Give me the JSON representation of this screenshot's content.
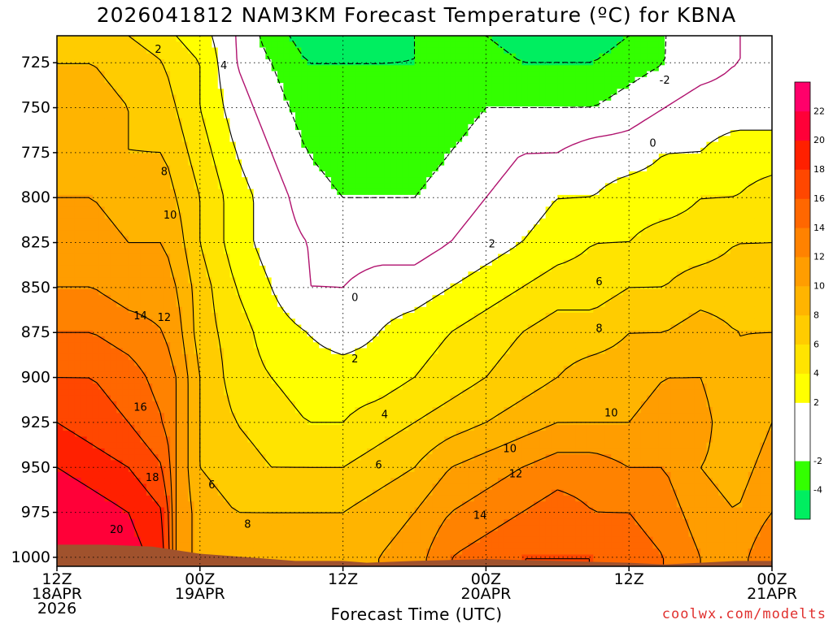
{
  "chart_data": {
    "type": "heatmap",
    "title": "2026041812 NAM3KM Forecast Temperature (ºC) for KBNA",
    "xlabel": "Forecast Time (UTC)",
    "credit": "coolwx.com/modelts",
    "y_axis": {
      "unit": "hPa",
      "reversed": true,
      "range": [
        710,
        1005
      ],
      "ticks": [
        725,
        750,
        775,
        800,
        825,
        850,
        875,
        900,
        925,
        950,
        975,
        1000
      ]
    },
    "x_axis": {
      "range_hours": [
        0,
        60
      ],
      "ticks": [
        {
          "hour": 0,
          "lines": [
            "12Z",
            "18APR",
            "2026"
          ]
        },
        {
          "hour": 12,
          "lines": [
            "00Z",
            "19APR"
          ]
        },
        {
          "hour": 24,
          "lines": [
            "12Z"
          ]
        },
        {
          "hour": 36,
          "lines": [
            "00Z",
            "20APR"
          ]
        },
        {
          "hour": 48,
          "lines": [
            "12Z"
          ]
        },
        {
          "hour": 60,
          "lines": [
            "00Z",
            "21APR"
          ]
        }
      ]
    },
    "grid": true,
    "colorbar": {
      "position": "right",
      "levels": [
        -6,
        -4,
        -2,
        0,
        2,
        4,
        6,
        8,
        10,
        12,
        14,
        16,
        18,
        20,
        22,
        24
      ],
      "tick_labels": [
        "-4",
        "-2",
        "2",
        "4",
        "6",
        "8",
        "10",
        "12",
        "14",
        "16",
        "18",
        "20",
        "22"
      ],
      "colors": [
        "#00ee60",
        "#33ff00",
        "#ffffff",
        "#ffffff",
        "#ffff00",
        "#ffe400",
        "#ffcc00",
        "#ffb400",
        "#ff9d00",
        "#ff8200",
        "#ff6700",
        "#ff4700",
        "#ff2000",
        "#ff0038",
        "#ff006a"
      ]
    },
    "ground_color": "#a0522d",
    "surface_pressure": [
      [
        0,
        993
      ],
      [
        4,
        993
      ],
      [
        8,
        994
      ],
      [
        12,
        998
      ],
      [
        16,
        1000
      ],
      [
        20,
        1002
      ],
      [
        24,
        1002
      ],
      [
        26,
        1003
      ],
      [
        30,
        1002
      ],
      [
        36,
        1001
      ],
      [
        42,
        1002
      ],
      [
        48,
        1003
      ],
      [
        51,
        1004
      ],
      [
        54,
        1003
      ],
      [
        57,
        1002
      ],
      [
        60,
        1002
      ]
    ],
    "temperature_grid": {
      "units": "ºC",
      "hours": [
        0,
        3,
        6,
        9,
        10,
        12,
        15,
        18,
        21,
        24,
        27,
        30,
        33,
        36,
        39,
        42,
        45,
        48,
        51,
        54,
        57,
        60
      ],
      "levels": [
        710,
        725,
        750,
        775,
        800,
        825,
        850,
        875,
        900,
        925,
        950,
        975,
        1000
      ],
      "values": [
        [
          7,
          7,
          6,
          5,
          4,
          3,
          0,
          -3,
          -5,
          -5,
          -5,
          -4,
          -4,
          -4,
          -5,
          -5,
          -5,
          -4,
          -2,
          -1,
          0,
          0
        ],
        [
          8,
          8,
          7,
          6,
          5,
          4,
          0,
          -2,
          -4,
          -4,
          -4,
          -4,
          -4,
          -3,
          -4,
          -4,
          -4,
          -3,
          -2,
          -1,
          0,
          0
        ],
        [
          9,
          9,
          8,
          7,
          6,
          4,
          1,
          -1,
          -3,
          -3,
          -3,
          -3,
          -3,
          -2,
          -2,
          -2,
          -2,
          -1,
          0,
          1,
          1,
          1
        ],
        [
          9,
          9,
          8,
          8,
          7,
          5,
          2,
          0,
          -2,
          -3,
          -3,
          -3,
          -2,
          -1,
          0,
          0,
          1,
          1,
          2,
          2,
          3,
          3
        ],
        [
          10,
          10,
          9,
          9,
          8,
          6,
          3,
          1,
          -1,
          -2,
          -2,
          -2,
          -1,
          0,
          1,
          2,
          2,
          3,
          3,
          4,
          4,
          5
        ],
        [
          11,
          11,
          10,
          10,
          9,
          6,
          3,
          1,
          0,
          -1,
          -1,
          -1,
          0,
          1,
          2,
          3,
          4,
          4,
          5,
          5,
          6,
          6
        ],
        [
          12,
          12,
          11,
          11,
          10,
          7,
          4,
          2,
          0,
          0,
          1,
          1,
          2,
          3,
          4,
          5,
          5,
          6,
          6,
          7,
          7,
          7
        ],
        [
          14,
          14,
          13,
          12,
          11,
          7,
          5,
          3,
          2,
          1,
          2,
          3,
          4,
          5,
          6,
          7,
          7,
          8,
          8,
          9,
          8,
          8
        ],
        [
          16,
          16,
          15,
          13,
          12,
          8,
          5,
          4,
          3,
          3,
          3,
          4,
          5,
          6,
          7,
          8,
          9,
          9,
          10,
          10,
          8,
          9
        ],
        [
          18,
          17,
          16,
          14,
          12,
          8,
          6,
          5,
          4,
          4,
          5,
          6,
          7,
          8,
          9,
          10,
          10,
          10,
          11,
          11,
          8,
          10
        ],
        [
          20,
          19,
          18,
          16,
          12,
          8,
          7,
          6,
          6,
          6,
          7,
          8,
          10,
          11,
          12,
          13,
          13,
          12,
          12,
          10,
          9,
          11
        ],
        [
          22,
          21,
          20,
          18,
          12,
          9,
          8,
          8,
          8,
          8,
          9,
          10,
          12,
          13,
          14,
          15,
          14,
          14,
          13,
          11,
          10,
          12
        ],
        [
          22,
          22,
          21,
          19,
          12,
          9,
          9,
          9,
          9,
          9,
          10,
          11,
          14,
          15,
          16,
          16,
          16,
          15,
          14,
          12,
          11,
          14
        ]
      ]
    },
    "contour_labels": [
      {
        "text": "2",
        "hour": 8.5,
        "p": 718
      },
      {
        "text": "4",
        "hour": 14.0,
        "p": 727
      },
      {
        "text": "8",
        "hour": 9.0,
        "p": 786
      },
      {
        "text": "10",
        "hour": 9.5,
        "p": 810
      },
      {
        "text": "14",
        "hour": 7.0,
        "p": 866
      },
      {
        "text": "12",
        "hour": 9.0,
        "p": 867
      },
      {
        "text": "16",
        "hour": 7.0,
        "p": 917
      },
      {
        "text": "18",
        "hour": 8.0,
        "p": 956
      },
      {
        "text": "20",
        "hour": 5.0,
        "p": 985
      },
      {
        "text": "6",
        "hour": 13.0,
        "p": 960
      },
      {
        "text": "8",
        "hour": 16.0,
        "p": 982
      },
      {
        "text": "0",
        "hour": 25.0,
        "p": 856
      },
      {
        "text": "2",
        "hour": 25.0,
        "p": 890
      },
      {
        "text": "4",
        "hour": 27.5,
        "p": 921
      },
      {
        "text": "6",
        "hour": 27.0,
        "p": 949
      },
      {
        "text": "10",
        "hour": 38.0,
        "p": 940
      },
      {
        "text": "12",
        "hour": 38.5,
        "p": 954
      },
      {
        "text": "14",
        "hour": 35.5,
        "p": 977
      },
      {
        "text": "2",
        "hour": 36.5,
        "p": 826
      },
      {
        "text": "6",
        "hour": 45.5,
        "p": 847
      },
      {
        "text": "8",
        "hour": 45.5,
        "p": 873
      },
      {
        "text": "10",
        "hour": 46.5,
        "p": 920
      },
      {
        "text": "-2",
        "hour": 51.0,
        "p": 735
      },
      {
        "text": "0",
        "hour": 50.0,
        "p": 770
      }
    ]
  }
}
